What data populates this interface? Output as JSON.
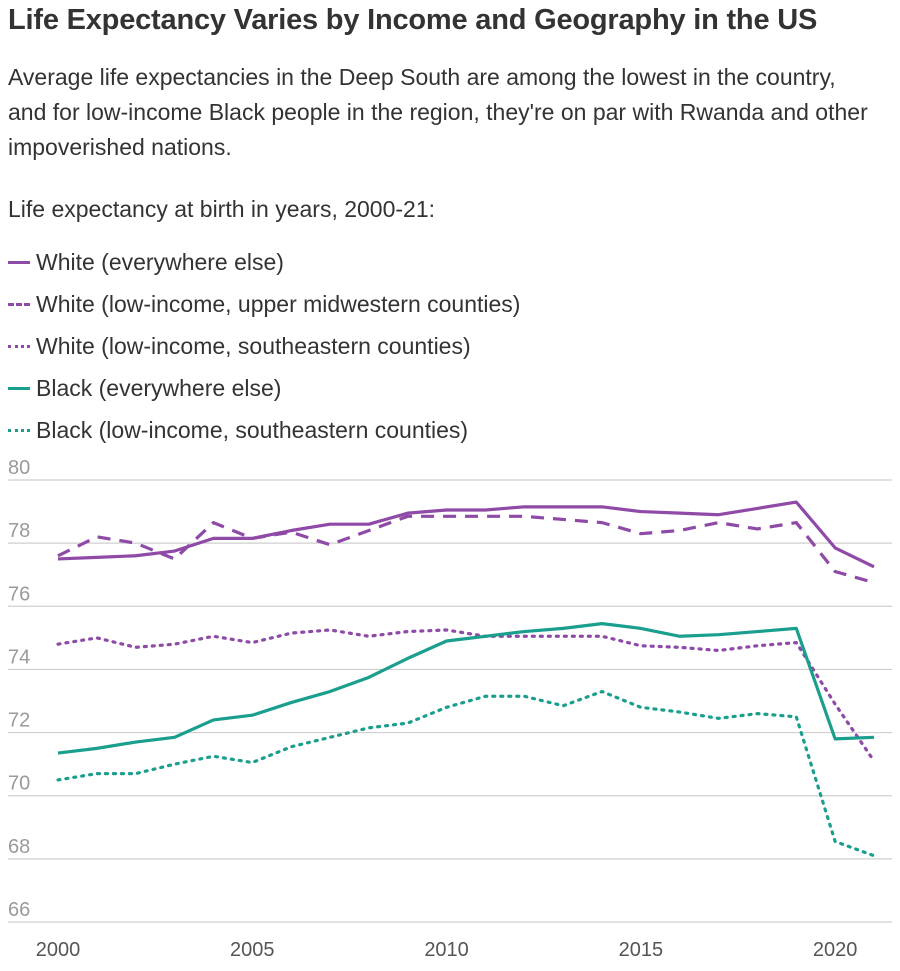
{
  "header": {
    "title": "Life Expectancy Varies by Income and Geography in the US",
    "subtitle": "Average life expectancies in the Deep South are among the lowest in the country, and for low-income Black people in the region, they're on par with Rwanda and other impoverished nations."
  },
  "chart_data": {
    "type": "line",
    "legend_title": "Life expectancy at birth in years, 2000-21:",
    "x": [
      2000,
      2001,
      2002,
      2003,
      2004,
      2005,
      2006,
      2007,
      2008,
      2009,
      2010,
      2011,
      2012,
      2013,
      2014,
      2015,
      2016,
      2017,
      2018,
      2019,
      2020,
      2021
    ],
    "ylim": [
      66,
      80
    ],
    "yticks": [
      66,
      68,
      70,
      72,
      74,
      76,
      78,
      80
    ],
    "xticks": [
      2000,
      2005,
      2010,
      2015,
      2020
    ],
    "grid": true,
    "series": [
      {
        "name": "White (everywhere else)",
        "color": "#8e4aa6",
        "style": "solid",
        "values": [
          77.5,
          77.55,
          77.6,
          77.75,
          78.15,
          78.15,
          78.4,
          78.6,
          78.6,
          78.95,
          79.05,
          79.05,
          79.15,
          79.15,
          79.15,
          79.0,
          78.95,
          78.9,
          79.1,
          79.3,
          77.85,
          77.25
        ]
      },
      {
        "name": "White (low-income, upper midwestern counties)",
        "color": "#8e4aa6",
        "style": "dashed",
        "values": [
          77.6,
          78.2,
          78.0,
          77.5,
          78.65,
          78.15,
          78.35,
          77.95,
          78.4,
          78.85,
          78.85,
          78.85,
          78.85,
          78.75,
          78.65,
          78.3,
          78.4,
          78.65,
          78.45,
          78.65,
          77.1,
          76.75
        ]
      },
      {
        "name": "White (low-income, southeastern counties)",
        "color": "#8e4aa6",
        "style": "dotted",
        "values": [
          74.8,
          75.0,
          74.7,
          74.8,
          75.05,
          74.85,
          75.15,
          75.25,
          75.05,
          75.2,
          75.25,
          75.05,
          75.05,
          75.05,
          75.05,
          74.75,
          74.7,
          74.6,
          74.75,
          74.85,
          72.9,
          71.1
        ]
      },
      {
        "name": "Black (everywhere else)",
        "color": "#1a9e8d",
        "style": "solid",
        "values": [
          71.35,
          71.5,
          71.7,
          71.85,
          72.4,
          72.55,
          72.95,
          73.3,
          73.75,
          74.35,
          74.9,
          75.05,
          75.2,
          75.3,
          75.45,
          75.3,
          75.05,
          75.1,
          75.2,
          75.3,
          71.8,
          71.85
        ]
      },
      {
        "name": "Black (low-income, southeastern counties)",
        "color": "#1a9e8d",
        "style": "dotted",
        "values": [
          70.5,
          70.7,
          70.7,
          71.0,
          71.25,
          71.05,
          71.55,
          71.85,
          72.15,
          72.3,
          72.8,
          73.15,
          73.15,
          72.85,
          73.3,
          72.8,
          72.65,
          72.45,
          72.6,
          72.5,
          68.55,
          68.1
        ]
      }
    ]
  }
}
